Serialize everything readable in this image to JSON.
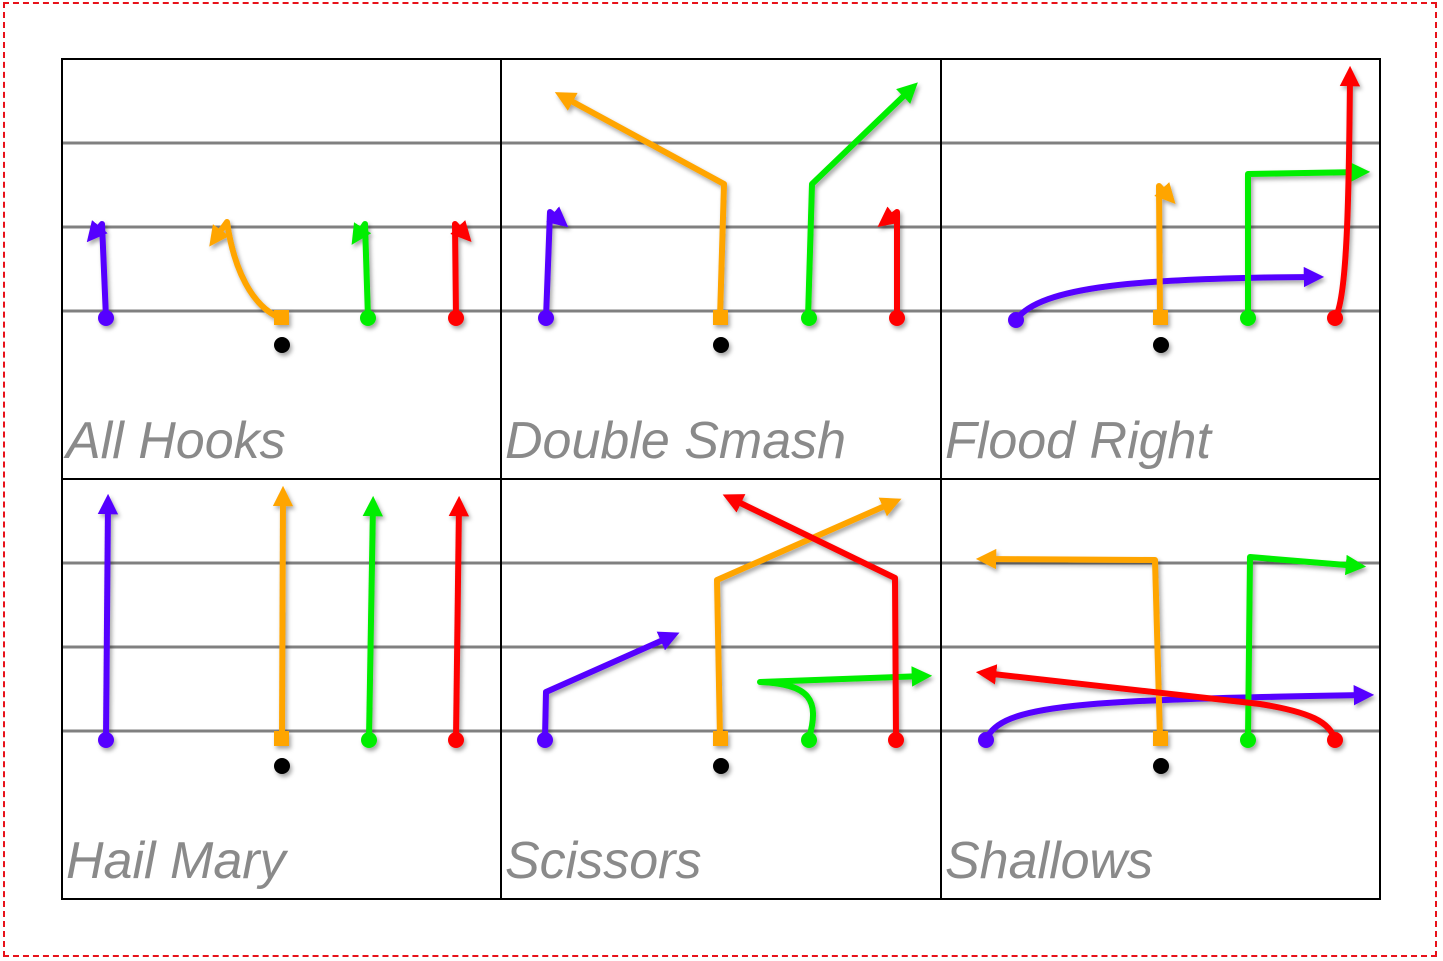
{
  "colors": {
    "frame_border": "#e8121a",
    "title_text": "#8a8a8a",
    "yard_line": "#808080",
    "ball": "#000000",
    "receiver_1": "#5500ff",
    "receiver_2": "#ffa500",
    "receiver_3": "#00ee00",
    "receiver_4": "#ff0000"
  },
  "plays": [
    {
      "name": "All Hooks"
    },
    {
      "name": "Double Smash"
    },
    {
      "name": "Flood Right"
    },
    {
      "name": "Hail Mary"
    },
    {
      "name": "Scissors"
    },
    {
      "name": "Shallows"
    }
  ],
  "legend_notes": {
    "player_marker_receiver": "circle",
    "player_marker_center": "square",
    "ball_marker": "dot"
  }
}
